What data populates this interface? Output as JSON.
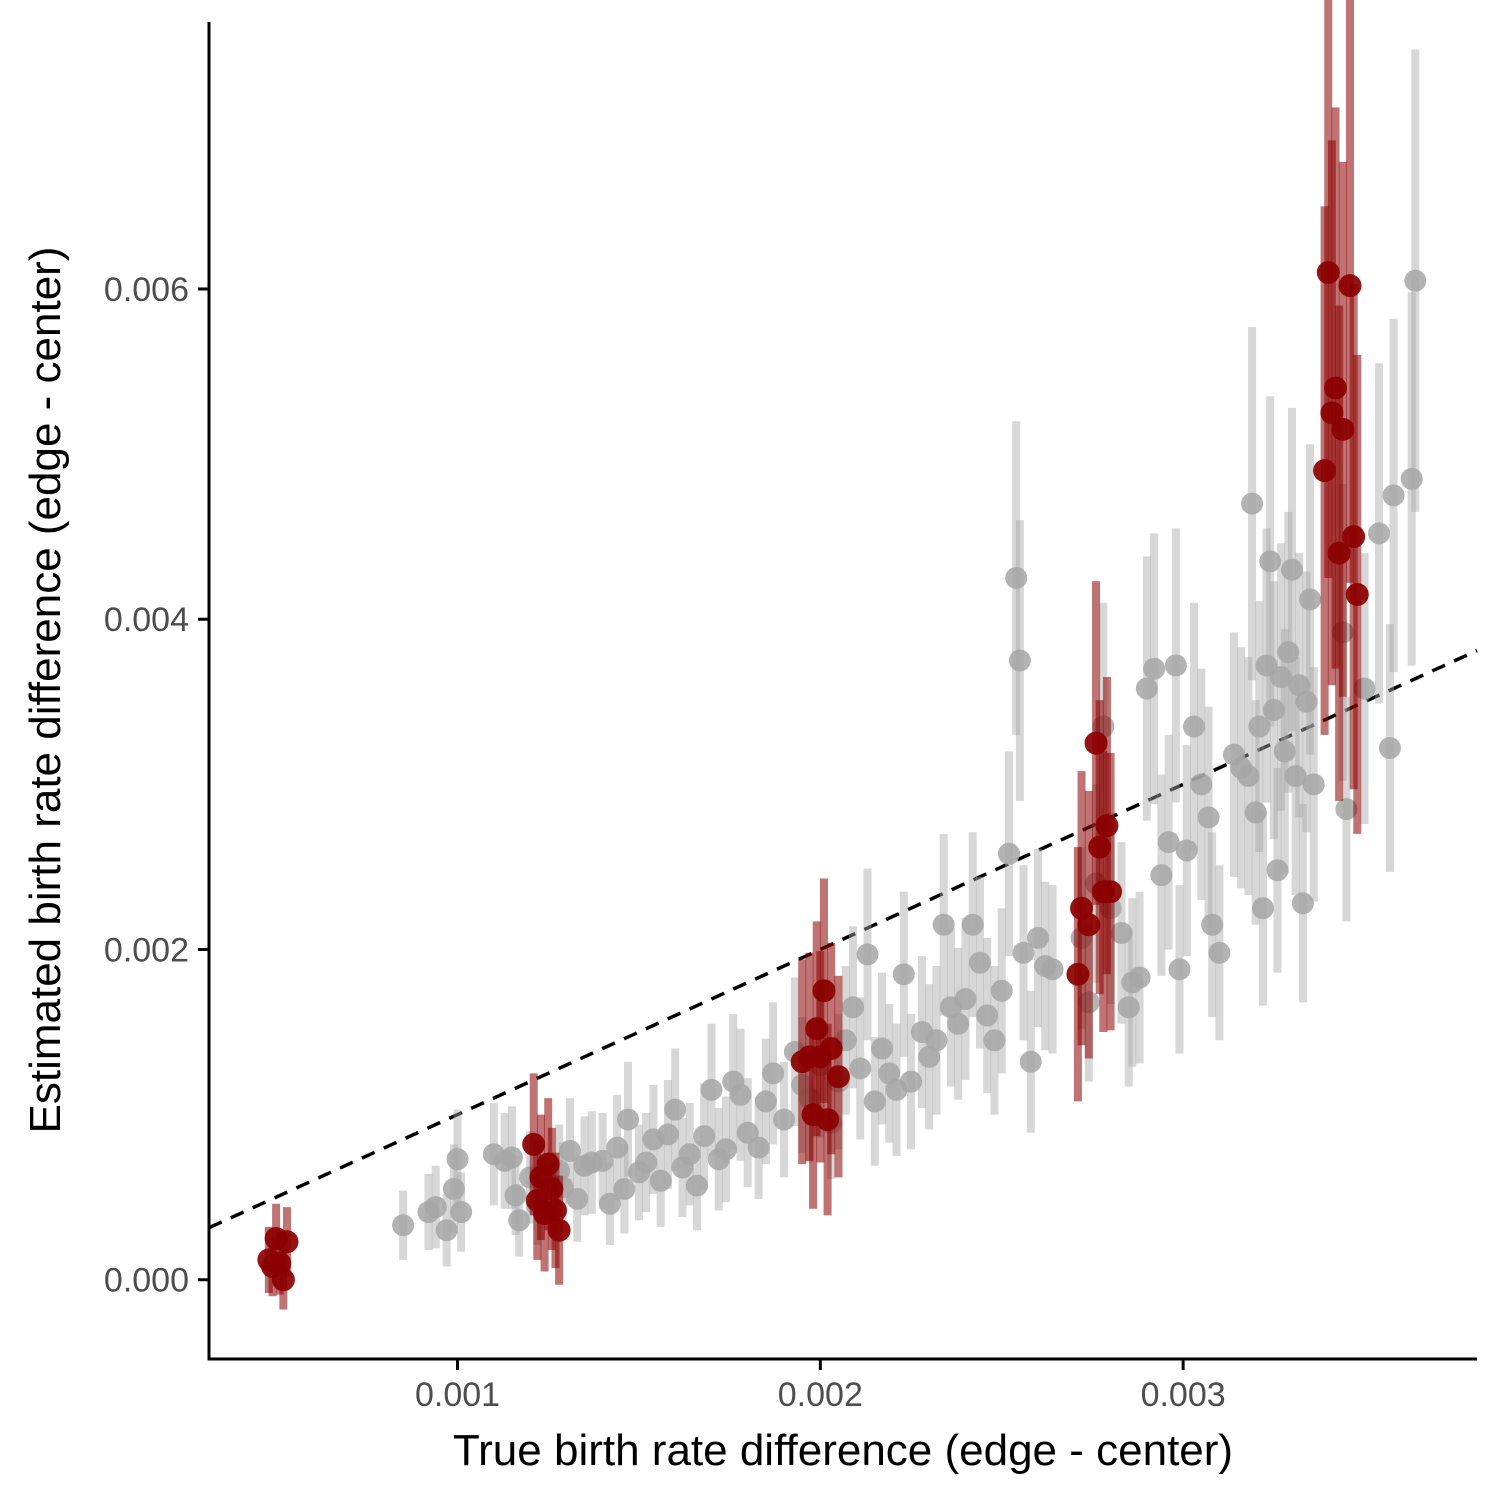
{
  "chart_data": {
    "type": "scatter",
    "title": "",
    "xlabel": "True birth rate difference (edge - center)",
    "ylabel": "Estimated birth rate difference (edge - center)",
    "xlim": [
      0.000315,
      0.00381
    ],
    "ylim": [
      -0.00048,
      0.00775
    ],
    "x_ticks": [
      {
        "value": 0.001,
        "label": "0.001"
      },
      {
        "value": 0.002,
        "label": "0.002"
      },
      {
        "value": 0.003,
        "label": "0.003"
      }
    ],
    "y_ticks": [
      {
        "value": 0.0,
        "label": "0.000"
      },
      {
        "value": 0.002,
        "label": "0.002"
      },
      {
        "value": 0.004,
        "label": "0.004"
      },
      {
        "value": 0.006,
        "label": "0.006"
      }
    ],
    "grid": false,
    "legend": "none",
    "reference_line": {
      "style": "dashed",
      "color": "#000000",
      "slope": 1,
      "intercept": 0
    },
    "series": [
      {
        "style": "grey-background",
        "color": "#a6a6a6",
        "points": [
          [
            0.00085,
            0.00033,
            0.00021
          ],
          [
            0.00092,
            0.00041,
            0.00023
          ],
          [
            0.00094,
            0.00044,
            0.00025
          ],
          [
            0.00097,
            0.0003,
            0.00022
          ],
          [
            0.00099,
            0.00055,
            0.00027
          ],
          [
            0.001,
            0.00073,
            0.0003
          ],
          [
            0.00101,
            0.00041,
            0.00024
          ],
          [
            0.0011,
            0.00076,
            0.00031
          ],
          [
            0.00113,
            0.00072,
            0.00029
          ],
          [
            0.00115,
            0.00074,
            0.00031
          ],
          [
            0.00116,
            0.00051,
            0.00024
          ],
          [
            0.00117,
            0.00036,
            0.00022
          ],
          [
            0.0012,
            0.00062,
            0.00028
          ],
          [
            0.00122,
            0.00045,
            0.00024
          ],
          [
            0.00128,
            0.00066,
            0.00028
          ],
          [
            0.00129,
            0.00056,
            0.00027
          ],
          [
            0.00131,
            0.00078,
            0.00032
          ],
          [
            0.00133,
            0.00049,
            0.00026
          ],
          [
            0.00135,
            0.00069,
            0.0003
          ],
          [
            0.00137,
            0.00071,
            0.00031
          ],
          [
            0.0014,
            0.00072,
            0.00029
          ],
          [
            0.00142,
            0.00046,
            0.00025
          ],
          [
            0.00144,
            0.0008,
            0.00032
          ],
          [
            0.00146,
            0.00055,
            0.00027
          ],
          [
            0.00147,
            0.00097,
            0.00035
          ],
          [
            0.0015,
            0.00065,
            0.00029
          ],
          [
            0.00152,
            0.00071,
            0.0003
          ],
          [
            0.00154,
            0.00085,
            0.00033
          ],
          [
            0.00156,
            0.0006,
            0.00028
          ],
          [
            0.00158,
            0.00088,
            0.00033
          ],
          [
            0.0016,
            0.00103,
            0.00037
          ],
          [
            0.00162,
            0.00068,
            0.0003
          ],
          [
            0.00164,
            0.00076,
            0.00031
          ],
          [
            0.00166,
            0.00057,
            0.00027
          ],
          [
            0.00168,
            0.00087,
            0.00032
          ],
          [
            0.0017,
            0.00115,
            0.0004
          ],
          [
            0.00172,
            0.00073,
            0.00031
          ],
          [
            0.00174,
            0.00079,
            0.00032
          ],
          [
            0.00176,
            0.0012,
            0.00041
          ],
          [
            0.00178,
            0.00112,
            0.0004
          ],
          [
            0.0018,
            0.00089,
            0.00033
          ],
          [
            0.00183,
            0.0008,
            0.00031
          ],
          [
            0.00185,
            0.00108,
            0.00038
          ],
          [
            0.00187,
            0.00125,
            0.00043
          ],
          [
            0.0019,
            0.00097,
            0.00035
          ],
          [
            0.00193,
            0.00138,
            0.00045
          ],
          [
            0.00195,
            0.00118,
            0.00041
          ],
          [
            0.00197,
            0.0011,
            0.00039
          ],
          [
            0.002,
            0.0013,
            0.00044
          ],
          [
            0.00203,
            0.00095,
            0.00034
          ],
          [
            0.00205,
            0.0012,
            0.00041
          ],
          [
            0.00207,
            0.00145,
            0.00045
          ],
          [
            0.00209,
            0.00165,
            0.00049
          ],
          [
            0.00211,
            0.00128,
            0.00043
          ],
          [
            0.00213,
            0.00197,
            0.00052
          ],
          [
            0.00215,
            0.00108,
            0.00039
          ],
          [
            0.00217,
            0.0014,
            0.00046
          ],
          [
            0.00219,
            0.00125,
            0.00042
          ],
          [
            0.00221,
            0.00115,
            0.0004
          ],
          [
            0.00223,
            0.00185,
            0.0005
          ],
          [
            0.00225,
            0.0012,
            0.00041
          ],
          [
            0.00228,
            0.0015,
            0.00046
          ],
          [
            0.0023,
            0.00135,
            0.00044
          ],
          [
            0.00232,
            0.00145,
            0.00045
          ],
          [
            0.00234,
            0.00215,
            0.00055
          ],
          [
            0.00236,
            0.00165,
            0.00048
          ],
          [
            0.00238,
            0.00155,
            0.00046
          ],
          [
            0.0024,
            0.0017,
            0.00049
          ],
          [
            0.00242,
            0.00215,
            0.00056
          ],
          [
            0.00244,
            0.00192,
            0.00052
          ],
          [
            0.00246,
            0.0016,
            0.00047
          ],
          [
            0.00248,
            0.00145,
            0.00045
          ],
          [
            0.0025,
            0.00175,
            0.0005
          ],
          [
            0.00252,
            0.00258,
            0.00062
          ],
          [
            0.00254,
            0.00425,
            0.00095
          ],
          [
            0.00255,
            0.00375,
            0.00085
          ],
          [
            0.00256,
            0.00198,
            0.00053
          ],
          [
            0.00258,
            0.00132,
            0.00043
          ],
          [
            0.0026,
            0.00207,
            0.00054
          ],
          [
            0.00262,
            0.0019,
            0.00051
          ],
          [
            0.00264,
            0.00188,
            0.00051
          ],
          [
            0.00272,
            0.00207,
            0.00055
          ],
          [
            0.00274,
            0.00168,
            0.00048
          ],
          [
            0.00276,
            0.0024,
            0.0006
          ],
          [
            0.00278,
            0.00335,
            0.00075
          ],
          [
            0.0028,
            0.00225,
            0.00058
          ],
          [
            0.00283,
            0.0021,
            0.00055
          ],
          [
            0.00285,
            0.00165,
            0.00048
          ],
          [
            0.00286,
            0.0018,
            0.00051
          ],
          [
            0.00288,
            0.00183,
            0.00052
          ],
          [
            0.0029,
            0.00358,
            0.0008
          ],
          [
            0.00292,
            0.0037,
            0.00082
          ],
          [
            0.00294,
            0.00245,
            0.00061
          ],
          [
            0.00296,
            0.00265,
            0.00065
          ],
          [
            0.00298,
            0.00372,
            0.00083
          ],
          [
            0.00299,
            0.00188,
            0.00051
          ],
          [
            0.00301,
            0.0026,
            0.00064
          ],
          [
            0.00303,
            0.00335,
            0.00075
          ],
          [
            0.00305,
            0.003,
            0.0007
          ],
          [
            0.00307,
            0.0028,
            0.00067
          ],
          [
            0.00308,
            0.00215,
            0.00056
          ],
          [
            0.0031,
            0.00198,
            0.00053
          ],
          [
            0.00314,
            0.00318,
            0.00074
          ],
          [
            0.00316,
            0.0031,
            0.00073
          ],
          [
            0.00318,
            0.00305,
            0.00072
          ],
          [
            0.00319,
            0.0047,
            0.00107
          ],
          [
            0.0032,
            0.00283,
            0.00068
          ],
          [
            0.00321,
            0.00335,
            0.00076
          ],
          [
            0.00322,
            0.00225,
            0.00059
          ],
          [
            0.00323,
            0.00372,
            0.00083
          ],
          [
            0.00324,
            0.00435,
            0.001
          ],
          [
            0.00325,
            0.00345,
            0.00078
          ],
          [
            0.00326,
            0.00248,
            0.00062
          ],
          [
            0.00327,
            0.00365,
            0.00081
          ],
          [
            0.00328,
            0.0032,
            0.00074
          ],
          [
            0.00329,
            0.0038,
            0.00085
          ],
          [
            0.0033,
            0.0043,
            0.00098
          ],
          [
            0.00331,
            0.00305,
            0.00072
          ],
          [
            0.00332,
            0.0036,
            0.0008
          ],
          [
            0.00333,
            0.00228,
            0.0006
          ],
          [
            0.00334,
            0.0035,
            0.00079
          ],
          [
            0.00335,
            0.00412,
            0.00094
          ],
          [
            0.00336,
            0.003,
            0.00071
          ],
          [
            0.00344,
            0.00392,
            0.0009
          ],
          [
            0.00345,
            0.00285,
            0.00068
          ],
          [
            0.0035,
            0.00358,
            0.00082
          ],
          [
            0.00354,
            0.00452,
            0.00103
          ],
          [
            0.00357,
            0.00322,
            0.00075
          ],
          [
            0.00358,
            0.00475,
            0.00107
          ],
          [
            0.00363,
            0.00485,
            0.00113
          ],
          [
            0.00364,
            0.00605,
            0.0014
          ]
        ]
      },
      {
        "style": "dark-red-highlight",
        "color": "#8b0000",
        "points": [
          [
            0.00048,
            0.00012,
            0.0002
          ],
          [
            0.00049,
            8e-05,
            0.00018
          ],
          [
            0.0005,
            0.00025,
            0.00021
          ],
          [
            0.00051,
            0.0001,
            0.00019
          ],
          [
            0.00052,
            0.0,
            0.00018
          ],
          [
            0.00053,
            0.00023,
            0.00021
          ],
          [
            0.00121,
            0.00082,
            0.00043
          ],
          [
            0.00122,
            0.00048,
            0.00036
          ],
          [
            0.00123,
            0.00062,
            0.00038
          ],
          [
            0.00124,
            0.0004,
            0.00035
          ],
          [
            0.00125,
            0.0007,
            0.0004
          ],
          [
            0.00126,
            0.00055,
            0.00037
          ],
          [
            0.00127,
            0.00042,
            0.00035
          ],
          [
            0.00128,
            0.0003,
            0.00033
          ],
          [
            0.00195,
            0.00132,
            0.00062
          ],
          [
            0.00197,
            0.00135,
            0.00063
          ],
          [
            0.00198,
            0.001,
            0.00057
          ],
          [
            0.00199,
            0.00152,
            0.00065
          ],
          [
            0.002,
            0.00135,
            0.00064
          ],
          [
            0.00201,
            0.00175,
            0.00068
          ],
          [
            0.00202,
            0.00097,
            0.00058
          ],
          [
            0.00203,
            0.0014,
            0.00064
          ],
          [
            0.00205,
            0.00123,
            0.00061
          ],
          [
            0.00271,
            0.00185,
            0.00077
          ],
          [
            0.00272,
            0.00225,
            0.00083
          ],
          [
            0.00274,
            0.00215,
            0.00081
          ],
          [
            0.00276,
            0.00325,
            0.00098
          ],
          [
            0.00277,
            0.00262,
            0.00089
          ],
          [
            0.00278,
            0.00235,
            0.00085
          ],
          [
            0.00279,
            0.00275,
            0.0009
          ],
          [
            0.0028,
            0.00235,
            0.00084
          ],
          [
            0.00339,
            0.0049,
            0.0016
          ],
          [
            0.0034,
            0.0061,
            0.00185
          ],
          [
            0.00341,
            0.00525,
            0.00165
          ],
          [
            0.00342,
            0.0054,
            0.0017
          ],
          [
            0.00343,
            0.0044,
            0.0015
          ],
          [
            0.00344,
            0.00515,
            0.00162
          ],
          [
            0.00346,
            0.00602,
            0.0018
          ],
          [
            0.00347,
            0.0045,
            0.00153
          ],
          [
            0.00348,
            0.00415,
            0.00145
          ]
        ]
      }
    ]
  }
}
